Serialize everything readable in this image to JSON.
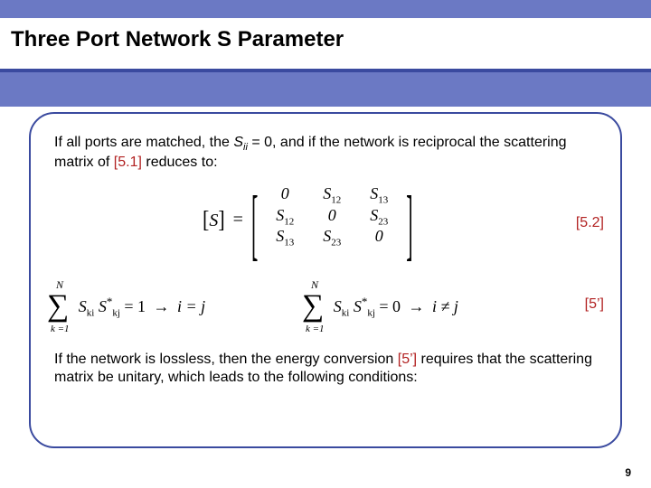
{
  "title": "Three Port Network S Parameter",
  "para1_a": "If all ports are matched, the ",
  "para1_var": "S",
  "para1_sub": "ii",
  "para1_b": " = 0, and if the network is reciprocal the scattering matrix of ",
  "para1_ref": "[5.1]",
  "para1_c": " reduces to:",
  "eq_label_1": "[5.2]",
  "matrix": {
    "lhs_open": "[",
    "lhs_S": "S",
    "lhs_close": "]",
    "eq": "=",
    "rows": [
      [
        "0",
        "S<sub class=\"msub\">12</sub>",
        "S<sub class=\"msub\">13</sub>"
      ],
      [
        "S<sub class=\"msub\">12</sub>",
        "0",
        "S<sub class=\"msub\">23</sub>"
      ],
      [
        "S<sub class=\"msub\">13</sub>",
        "S<sub class=\"msub\">23</sub>",
        "0"
      ]
    ]
  },
  "sum": {
    "top": "N",
    "bot": "k =1",
    "term1": "S",
    "term1_sub": "ki",
    "term2": "S",
    "term2_sub": "kj",
    "eq1_rhs": "= 1",
    "eq1_cond": "i = j",
    "eq2_rhs": "= 0",
    "eq2_cond": "i ≠ j"
  },
  "eq_label_2": "[5’]",
  "para2_a": "If the network is lossless, then the energy conversion ",
  "para2_ref": "[5’]",
  "para2_b": " requires that the scattering matrix be unitary, which leads to the following conditions:",
  "page_number": "9",
  "colors": {
    "band": "#6b79c4",
    "rule": "#3a4a9f",
    "ref": "#b22222"
  }
}
